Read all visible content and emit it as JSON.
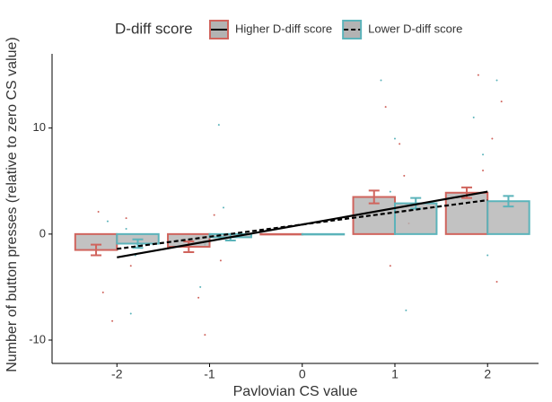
{
  "chart_data": {
    "type": "bar",
    "legend_title": "D-diff score",
    "x_label": "Pavlovian CS value",
    "y_label": "Number of button presses (relative to zero CS value)",
    "x": [
      -2,
      -1,
      0,
      1,
      2
    ],
    "xlim": [
      -2.7,
      2.55
    ],
    "xticks": [
      -2,
      -1,
      0,
      1,
      2
    ],
    "ylim": [
      -12.2,
      17
    ],
    "yticks": [
      -10,
      0,
      10
    ],
    "bar_fill": "#b3b3b3",
    "series": [
      {
        "name": "Higher D-diff score",
        "color": "#d0645d",
        "line_style": "solid",
        "values": [
          -1.5,
          -1.2,
          0,
          3.5,
          3.9
        ],
        "errors": [
          0.5,
          0.5,
          0,
          0.6,
          0.5
        ],
        "line": {
          "x": [
            -2,
            2
          ],
          "y": [
            -2.2,
            4.0
          ]
        },
        "points": {
          "x": [
            -2.15,
            -2.05,
            -1.9,
            -2.2,
            -1.85,
            -1.12,
            -0.95,
            -1.05,
            -0.88,
            0.9,
            1.1,
            0.95,
            1.05,
            1.15,
            1.9,
            2.05,
            2.1,
            1.95,
            2.15
          ],
          "y": [
            -5.5,
            -8.2,
            1.5,
            2.1,
            -3.0,
            -6.0,
            1.8,
            -9.5,
            -2.5,
            12.0,
            5.5,
            -3.0,
            8.5,
            1.0,
            15.0,
            9.0,
            -4.5,
            6.0,
            12.5
          ]
        }
      },
      {
        "name": "Lower D-diff score",
        "color": "#5bb3ba",
        "line_style": "dashed",
        "values": [
          -0.9,
          -0.3,
          0,
          2.9,
          3.1
        ],
        "errors": [
          0.4,
          0.3,
          0,
          0.5,
          0.5
        ],
        "line": {
          "x": [
            -2,
            2
          ],
          "y": [
            -1.4,
            3.2
          ]
        },
        "points": {
          "x": [
            -1.9,
            -1.8,
            -2.1,
            -1.85,
            -1.05,
            -0.9,
            -1.1,
            -0.85,
            0.85,
            1.0,
            1.12,
            0.95,
            1.85,
            2.0,
            2.1,
            1.95
          ],
          "y": [
            0.5,
            -2.0,
            1.2,
            -7.5,
            -1.0,
            10.3,
            -5.0,
            2.5,
            14.5,
            9.0,
            -7.2,
            4.0,
            11.0,
            -2.0,
            14.5,
            7.5
          ]
        }
      }
    ]
  }
}
